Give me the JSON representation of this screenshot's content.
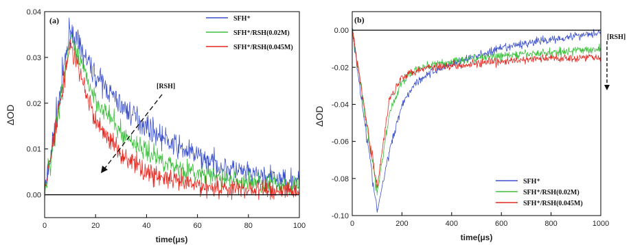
{
  "chart_data": [
    {
      "type": "line",
      "panel_label": "(a)",
      "xlabel": "time(μs)",
      "ylabel": "ΔOD",
      "xlim": [
        0,
        100
      ],
      "ylim": [
        -0.005,
        0.04
      ],
      "xticks": [
        0,
        20,
        40,
        60,
        80,
        100
      ],
      "yticks": [
        0.0,
        0.01,
        0.02,
        0.03,
        0.04
      ],
      "ytick_labels": [
        "0.00",
        "0.01",
        "0.02",
        "0.03",
        "0.04"
      ],
      "grid": false,
      "legend_position": "top-right",
      "annotation": {
        "text": "[RSH]",
        "arrow": "diagonal pointing down-left"
      },
      "series": [
        {
          "name": "SFH⁺",
          "color": "#3a4fc8",
          "pulse_time": 10,
          "peak": 0.036,
          "tau": 30,
          "baseline": 0.0015,
          "noise": 0.0024,
          "points": [
            [
              0,
              0.0
            ],
            [
              10,
              0.036
            ],
            [
              20,
              0.026
            ],
            [
              30,
              0.0195
            ],
            [
              40,
              0.015
            ],
            [
              50,
              0.011
            ],
            [
              60,
              0.0085
            ],
            [
              70,
              0.006
            ],
            [
              80,
              0.0045
            ],
            [
              90,
              0.0035
            ],
            [
              100,
              0.003
            ]
          ]
        },
        {
          "name": "SFH⁺/RSH(0.02M)",
          "color": "#3cbf3c",
          "pulse_time": 10,
          "peak": 0.034,
          "tau": 20,
          "baseline": 0.0015,
          "noise": 0.0022,
          "points": [
            [
              0,
              0.0
            ],
            [
              10,
              0.034
            ],
            [
              20,
              0.021
            ],
            [
              30,
              0.0135
            ],
            [
              40,
              0.0095
            ],
            [
              50,
              0.0065
            ],
            [
              60,
              0.0045
            ],
            [
              70,
              0.0035
            ],
            [
              80,
              0.0028
            ],
            [
              90,
              0.0022
            ],
            [
              100,
              0.002
            ]
          ]
        },
        {
          "name": "SFH⁺/RSH(0.045M)",
          "color": "#e3261e",
          "pulse_time": 10,
          "peak": 0.033,
          "tau": 13,
          "baseline": 0.001,
          "noise": 0.0022,
          "points": [
            [
              0,
              0.0
            ],
            [
              10,
              0.033
            ],
            [
              20,
              0.016
            ],
            [
              30,
              0.009
            ],
            [
              40,
              0.005
            ],
            [
              50,
              0.003
            ],
            [
              60,
              0.002
            ],
            [
              70,
              0.0015
            ],
            [
              80,
              0.0012
            ],
            [
              90,
              0.001
            ],
            [
              100,
              0.001
            ]
          ]
        }
      ]
    },
    {
      "type": "line",
      "panel_label": "(b)",
      "xlabel": "time(μs)",
      "ylabel": "ΔOD",
      "xlim": [
        0,
        1000
      ],
      "ylim": [
        -0.1,
        0.01
      ],
      "xticks": [
        0,
        200,
        400,
        600,
        800,
        1000
      ],
      "yticks": [
        0.0,
        -0.02,
        -0.04,
        -0.06,
        -0.08,
        -0.1
      ],
      "ytick_labels": [
        "0.00",
        "-0.02",
        "-0.04",
        "-0.06",
        "-0.08",
        "-0.10"
      ],
      "grid": false,
      "legend_position": "bottom-right",
      "annotation": {
        "text": "[RSH]",
        "arrow": "vertical pointing down"
      },
      "series": [
        {
          "name": "SFH⁺",
          "color": "#3a4fc8",
          "pulse_time": 100,
          "peak": -0.098,
          "points": [
            [
              0,
              0.0
            ],
            [
              100,
              -0.098
            ],
            [
              150,
              -0.065
            ],
            [
              200,
              -0.04
            ],
            [
              250,
              -0.029
            ],
            [
              300,
              -0.024
            ],
            [
              400,
              -0.018
            ],
            [
              500,
              -0.014
            ],
            [
              600,
              -0.01
            ],
            [
              700,
              -0.007
            ],
            [
              800,
              -0.005
            ],
            [
              900,
              -0.003
            ],
            [
              1000,
              -0.001
            ]
          ],
          "noise": 0.0022
        },
        {
          "name": "SFH⁺/RSH(0.02M)",
          "color": "#3cbf3c",
          "pulse_time": 100,
          "peak": -0.088,
          "points": [
            [
              0,
              0.0
            ],
            [
              100,
              -0.088
            ],
            [
              150,
              -0.045
            ],
            [
              200,
              -0.028
            ],
            [
              250,
              -0.022
            ],
            [
              300,
              -0.019
            ],
            [
              400,
              -0.017
            ],
            [
              500,
              -0.015
            ],
            [
              600,
              -0.014
            ],
            [
              700,
              -0.013
            ],
            [
              800,
              -0.012
            ],
            [
              900,
              -0.011
            ],
            [
              1000,
              -0.01
            ]
          ],
          "noise": 0.0022
        },
        {
          "name": "SFH⁺/RSH(0.045M)",
          "color": "#e3261e",
          "pulse_time": 100,
          "peak": -0.085,
          "points": [
            [
              0,
              0.0
            ],
            [
              100,
              -0.085
            ],
            [
              150,
              -0.037
            ],
            [
              200,
              -0.025
            ],
            [
              250,
              -0.022
            ],
            [
              300,
              -0.02
            ],
            [
              400,
              -0.019
            ],
            [
              500,
              -0.018
            ],
            [
              600,
              -0.017
            ],
            [
              700,
              -0.016
            ],
            [
              800,
              -0.015
            ],
            [
              900,
              -0.015
            ],
            [
              1000,
              -0.014
            ]
          ],
          "noise": 0.0022
        }
      ]
    }
  ]
}
